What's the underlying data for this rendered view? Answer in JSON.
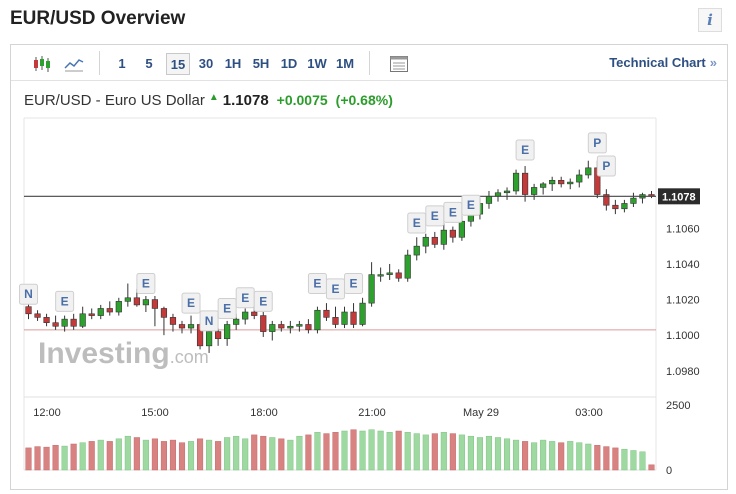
{
  "header": {
    "title": "EUR/USD Overview",
    "info_icon": "i"
  },
  "toolbar": {
    "chart_type_icons": [
      "candlestick-icon",
      "line-chart-icon"
    ],
    "timeframes": [
      "1",
      "5",
      "15",
      "30",
      "1H",
      "5H",
      "1D",
      "1W",
      "1M"
    ],
    "active_timeframe": "15",
    "settings_icon": "panel-icon",
    "technical_chart_label": "Technical Chart",
    "technical_chart_arrow": "»"
  },
  "quote": {
    "name": "EUR/USD - Euro US Dollar",
    "price": "1.1078",
    "change": "+0.0075",
    "change_pct": "(+0.68%)"
  },
  "watermark": {
    "main": "Investing",
    "suffix": ".com"
  },
  "colors": {
    "up": "#2ea02e",
    "down": "#c43a3a",
    "vol_up": "#9fd9a2",
    "vol_down": "#d88282",
    "price_line": "#444444",
    "ref_line": "#d99a9a"
  },
  "chart_data": {
    "type": "candlestick",
    "price_axis": {
      "ticks": [
        "1.1060",
        "1.1040",
        "1.1020",
        "1.1000",
        "1.0980"
      ],
      "range": [
        1.0972,
        1.1122
      ]
    },
    "time_axis": {
      "labels": [
        "12:00",
        "15:00",
        "18:00",
        "21:00",
        "May 29",
        "03:00"
      ]
    },
    "volume_axis": {
      "ticks": [
        "2500",
        "0"
      ],
      "range": [
        0,
        2500
      ]
    },
    "last_price": "1.1078",
    "reference_price": 1.1003,
    "candles": [
      [
        1.1016,
        1.1018,
        1.1009,
        1.1012
      ],
      [
        1.1012,
        1.1014,
        1.1008,
        1.101
      ],
      [
        1.101,
        1.1012,
        1.1005,
        1.1007
      ],
      [
        1.1007,
        1.1011,
        1.1003,
        1.1005
      ],
      [
        1.1005,
        1.1011,
        1.1002,
        1.1009
      ],
      [
        1.1009,
        1.1012,
        1.1003,
        1.1005
      ],
      [
        1.1005,
        1.1016,
        1.1004,
        1.1012
      ],
      [
        1.1012,
        1.1015,
        1.1009,
        1.1011
      ],
      [
        1.1011,
        1.1017,
        1.1009,
        1.1015
      ],
      [
        1.1015,
        1.1019,
        1.1011,
        1.1013
      ],
      [
        1.1013,
        1.1021,
        1.1011,
        1.1019
      ],
      [
        1.1019,
        1.1029,
        1.1016,
        1.1021
      ],
      [
        1.1021,
        1.1026,
        1.1016,
        1.1017
      ],
      [
        1.1017,
        1.1022,
        1.1013,
        1.102
      ],
      [
        1.102,
        1.1022,
        1.1005,
        1.1015
      ],
      [
        1.1015,
        1.1016,
        1.1,
        1.101
      ],
      [
        1.101,
        1.1012,
        1.1002,
        1.1006
      ],
      [
        1.1006,
        1.1008,
        1.1001,
        1.1004
      ],
      [
        1.1004,
        1.1011,
        1.1001,
        1.1006
      ],
      [
        1.1006,
        1.1007,
        1.0992,
        1.0994
      ],
      [
        1.0994,
        1.1004,
        1.099,
        1.1002
      ],
      [
        1.1002,
        1.1004,
        1.0994,
        1.0998
      ],
      [
        1.0998,
        1.1008,
        1.0994,
        1.1006
      ],
      [
        1.1006,
        1.1012,
        1.1003,
        1.1009
      ],
      [
        1.1009,
        1.1015,
        1.1006,
        1.1013
      ],
      [
        1.1013,
        1.1018,
        1.1009,
        1.1011
      ],
      [
        1.1011,
        1.1013,
        1.0999,
        1.1002
      ],
      [
        1.1002,
        1.1008,
        1.0997,
        1.1006
      ],
      [
        1.1006,
        1.1008,
        1.1002,
        1.1004
      ],
      [
        1.1004,
        1.1008,
        1.1001,
        1.1005
      ],
      [
        1.1005,
        1.1008,
        1.1002,
        1.1006
      ],
      [
        1.1006,
        1.1009,
        1.1001,
        1.1003
      ],
      [
        1.1003,
        1.1016,
        1.1001,
        1.1014
      ],
      [
        1.1014,
        1.1018,
        1.1008,
        1.101
      ],
      [
        1.101,
        1.1016,
        1.1004,
        1.1006
      ],
      [
        1.1006,
        1.1016,
        1.1004,
        1.1013
      ],
      [
        1.1013,
        1.1018,
        1.1004,
        1.1006
      ],
      [
        1.1006,
        1.1021,
        1.1005,
        1.1018
      ],
      [
        1.1018,
        1.1041,
        1.1016,
        1.1034
      ],
      [
        1.1034,
        1.1038,
        1.103,
        1.1034
      ],
      [
        1.1034,
        1.104,
        1.1031,
        1.1035
      ],
      [
        1.1035,
        1.1037,
        1.103,
        1.1032
      ],
      [
        1.1032,
        1.1048,
        1.103,
        1.1045
      ],
      [
        1.1045,
        1.1055,
        1.1042,
        1.105
      ],
      [
        1.105,
        1.1057,
        1.1046,
        1.1055
      ],
      [
        1.1055,
        1.1058,
        1.1049,
        1.1051
      ],
      [
        1.1051,
        1.1063,
        1.1048,
        1.1059
      ],
      [
        1.1059,
        1.1061,
        1.1052,
        1.1055
      ],
      [
        1.1055,
        1.1067,
        1.1053,
        1.1064
      ],
      [
        1.1064,
        1.107,
        1.1061,
        1.1068
      ],
      [
        1.1068,
        1.1077,
        1.1065,
        1.1074
      ],
      [
        1.1074,
        1.1081,
        1.1071,
        1.1078
      ],
      [
        1.1078,
        1.1082,
        1.1075,
        1.108
      ],
      [
        1.108,
        1.1083,
        1.1076,
        1.1081
      ],
      [
        1.1081,
        1.1093,
        1.1079,
        1.1091
      ],
      [
        1.1091,
        1.1095,
        1.1075,
        1.1079
      ],
      [
        1.1079,
        1.1085,
        1.1076,
        1.1083
      ],
      [
        1.1083,
        1.1086,
        1.1079,
        1.1085
      ],
      [
        1.1085,
        1.1089,
        1.1081,
        1.1087
      ],
      [
        1.1087,
        1.1089,
        1.1083,
        1.1085
      ],
      [
        1.1085,
        1.1088,
        1.1082,
        1.1086
      ],
      [
        1.1086,
        1.1093,
        1.1083,
        1.109
      ],
      [
        1.109,
        1.1098,
        1.1088,
        1.1094
      ],
      [
        1.1094,
        1.1098,
        1.1077,
        1.1079
      ],
      [
        1.1079,
        1.1082,
        1.107,
        1.1073
      ],
      [
        1.1073,
        1.1076,
        1.1068,
        1.1071
      ],
      [
        1.1071,
        1.1076,
        1.1069,
        1.1074
      ],
      [
        1.1074,
        1.108,
        1.1072,
        1.1077
      ],
      [
        1.1077,
        1.108,
        1.1074,
        1.1079
      ],
      [
        1.1079,
        1.1081,
        1.1077,
        1.1078
      ]
    ],
    "volume": [
      850,
      900,
      880,
      950,
      920,
      1000,
      1050,
      1100,
      1150,
      1100,
      1200,
      1300,
      1250,
      1150,
      1200,
      1100,
      1150,
      1050,
      1100,
      1200,
      1150,
      1100,
      1250,
      1300,
      1200,
      1350,
      1300,
      1250,
      1200,
      1150,
      1300,
      1350,
      1450,
      1400,
      1450,
      1500,
      1550,
      1500,
      1550,
      1500,
      1450,
      1500,
      1450,
      1400,
      1350,
      1400,
      1450,
      1400,
      1350,
      1300,
      1250,
      1300,
      1250,
      1200,
      1150,
      1100,
      1050,
      1150,
      1100,
      1050,
      1100,
      1050,
      1000,
      950,
      900,
      850,
      800,
      750,
      700,
      200
    ],
    "event_markers": [
      {
        "label": "N",
        "candle": 0,
        "price": 1.1023
      },
      {
        "label": "E",
        "candle": 4,
        "price": 1.1019
      },
      {
        "label": "E",
        "candle": 13,
        "price": 1.1029
      },
      {
        "label": "E",
        "candle": 18,
        "price": 1.1018
      },
      {
        "label": "N",
        "candle": 20,
        "price": 1.1008
      },
      {
        "label": "E",
        "candle": 22,
        "price": 1.1015
      },
      {
        "label": "E",
        "candle": 24,
        "price": 1.1021
      },
      {
        "label": "E",
        "candle": 26,
        "price": 1.1019
      },
      {
        "label": "E",
        "candle": 32,
        "price": 1.1029
      },
      {
        "label": "E",
        "candle": 34,
        "price": 1.1026
      },
      {
        "label": "E",
        "candle": 36,
        "price": 1.1029
      },
      {
        "label": "E",
        "candle": 43,
        "price": 1.1063
      },
      {
        "label": "E",
        "candle": 45,
        "price": 1.1067
      },
      {
        "label": "E",
        "candle": 47,
        "price": 1.1069
      },
      {
        "label": "E",
        "candle": 49,
        "price": 1.1073
      },
      {
        "label": "E",
        "candle": 55,
        "price": 1.1104
      },
      {
        "label": "P",
        "candle": 63,
        "price": 1.1108
      },
      {
        "label": "P",
        "candle": 64,
        "price": 1.1095
      }
    ]
  }
}
